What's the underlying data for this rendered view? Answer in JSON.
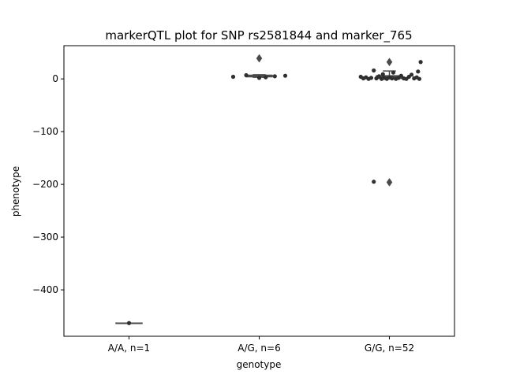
{
  "chart_data": {
    "type": "box",
    "title": "markerQTL plot for SNP rs2581844 and marker_765",
    "xlabel": "genotype",
    "ylabel": "phenotype",
    "categories": [
      "A/A, n=1",
      "A/G, n=6",
      "G/G, n=52"
    ],
    "ylim": [
      -488,
      63
    ],
    "yticks": [
      0,
      -100,
      -200,
      -300,
      -400
    ],
    "ytick_labels": [
      "0",
      "−100",
      "−200",
      "−300",
      "−400"
    ],
    "boxes": [
      {
        "category": "A/A, n=1",
        "whisker_low": -463,
        "q1": -463,
        "median": -463,
        "q3": -463,
        "whisker_high": -463,
        "outliers": []
      },
      {
        "category": "A/G, n=6",
        "whisker_low": 3,
        "q1": 4,
        "median": 5,
        "q3": 7,
        "whisker_high": 8,
        "outliers": [
          39
        ]
      },
      {
        "category": "G/G, n=52",
        "whisker_low": 0,
        "q1": 1,
        "median": 2,
        "q3": 6,
        "whisker_high": 15,
        "outliers": [
          32,
          -196
        ]
      }
    ],
    "points": [
      {
        "category": "A/A, n=1",
        "jitter": 0.0,
        "y": -463
      },
      {
        "category": "A/G, n=6",
        "jitter": -0.2,
        "y": 4
      },
      {
        "category": "A/G, n=6",
        "jitter": -0.1,
        "y": 7
      },
      {
        "category": "A/G, n=6",
        "jitter": 0.0,
        "y": 2
      },
      {
        "category": "A/G, n=6",
        "jitter": 0.05,
        "y": 3
      },
      {
        "category": "A/G, n=6",
        "jitter": 0.12,
        "y": 5
      },
      {
        "category": "A/G, n=6",
        "jitter": 0.2,
        "y": 6
      },
      {
        "category": "G/G, n=52",
        "jitter": -0.22,
        "y": 4
      },
      {
        "category": "G/G, n=52",
        "jitter": -0.2,
        "y": 1
      },
      {
        "category": "G/G, n=52",
        "jitter": -0.18,
        "y": 3
      },
      {
        "category": "G/G, n=52",
        "jitter": -0.16,
        "y": 0
      },
      {
        "category": "G/G, n=52",
        "jitter": -0.14,
        "y": 2
      },
      {
        "category": "G/G, n=52",
        "jitter": -0.12,
        "y": 16
      },
      {
        "category": "G/G, n=52",
        "jitter": -0.12,
        "y": -195
      },
      {
        "category": "G/G, n=52",
        "jitter": -0.1,
        "y": 1
      },
      {
        "category": "G/G, n=52",
        "jitter": -0.08,
        "y": 5
      },
      {
        "category": "G/G, n=52",
        "jitter": -0.06,
        "y": 0
      },
      {
        "category": "G/G, n=52",
        "jitter": -0.05,
        "y": 9
      },
      {
        "category": "G/G, n=52",
        "jitter": -0.04,
        "y": 2
      },
      {
        "category": "G/G, n=52",
        "jitter": -0.02,
        "y": 0
      },
      {
        "category": "G/G, n=52",
        "jitter": 0.0,
        "y": 3
      },
      {
        "category": "G/G, n=52",
        "jitter": 0.02,
        "y": 1
      },
      {
        "category": "G/G, n=52",
        "jitter": 0.03,
        "y": 12
      },
      {
        "category": "G/G, n=52",
        "jitter": 0.05,
        "y": 0
      },
      {
        "category": "G/G, n=52",
        "jitter": 0.07,
        "y": 2
      },
      {
        "category": "G/G, n=52",
        "jitter": 0.09,
        "y": 6
      },
      {
        "category": "G/G, n=52",
        "jitter": 0.11,
        "y": 1
      },
      {
        "category": "G/G, n=52",
        "jitter": 0.13,
        "y": 0
      },
      {
        "category": "G/G, n=52",
        "jitter": 0.15,
        "y": 4
      },
      {
        "category": "G/G, n=52",
        "jitter": 0.17,
        "y": 8
      },
      {
        "category": "G/G, n=52",
        "jitter": 0.19,
        "y": 1
      },
      {
        "category": "G/G, n=52",
        "jitter": 0.21,
        "y": 3
      },
      {
        "category": "G/G, n=52",
        "jitter": 0.22,
        "y": 14
      },
      {
        "category": "G/G, n=52",
        "jitter": 0.23,
        "y": 0
      },
      {
        "category": "G/G, n=52",
        "jitter": 0.24,
        "y": 32
      }
    ],
    "box_color": "#4a4a4a",
    "point_color": "#2f2f2f",
    "grid": false,
    "legend": "none"
  }
}
